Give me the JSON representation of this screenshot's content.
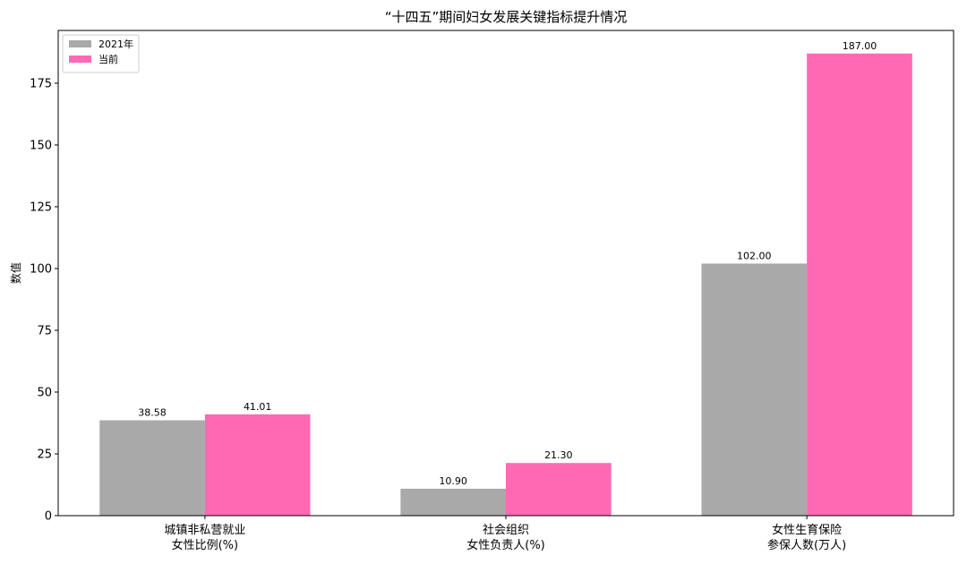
{
  "chart_data": {
    "type": "bar",
    "title": "“十四五”期间妇女发展关键指标提升情况",
    "xlabel": "",
    "ylabel": "数值",
    "categories": [
      [
        "城镇非私营就业",
        "女性比例(%)"
      ],
      [
        "社会组织",
        "女性负责人(%)"
      ],
      [
        "女性生育保险",
        "参保人数(万人)"
      ]
    ],
    "series": [
      {
        "name": "2021年",
        "values": [
          38.58,
          10.9,
          102.0
        ],
        "labels": [
          "38.58",
          "10.90",
          "102.00"
        ],
        "color": "#a9a9a9"
      },
      {
        "name": "当前",
        "values": [
          41.01,
          21.3,
          187.0
        ],
        "labels": [
          "41.01",
          "21.30",
          "187.00"
        ],
        "color": "#ff69b4"
      }
    ],
    "ylim": [
      0,
      196.35
    ],
    "yticks": [
      0,
      25,
      50,
      75,
      100,
      125,
      150,
      175
    ],
    "grid": false,
    "legend_position": "top-left"
  }
}
